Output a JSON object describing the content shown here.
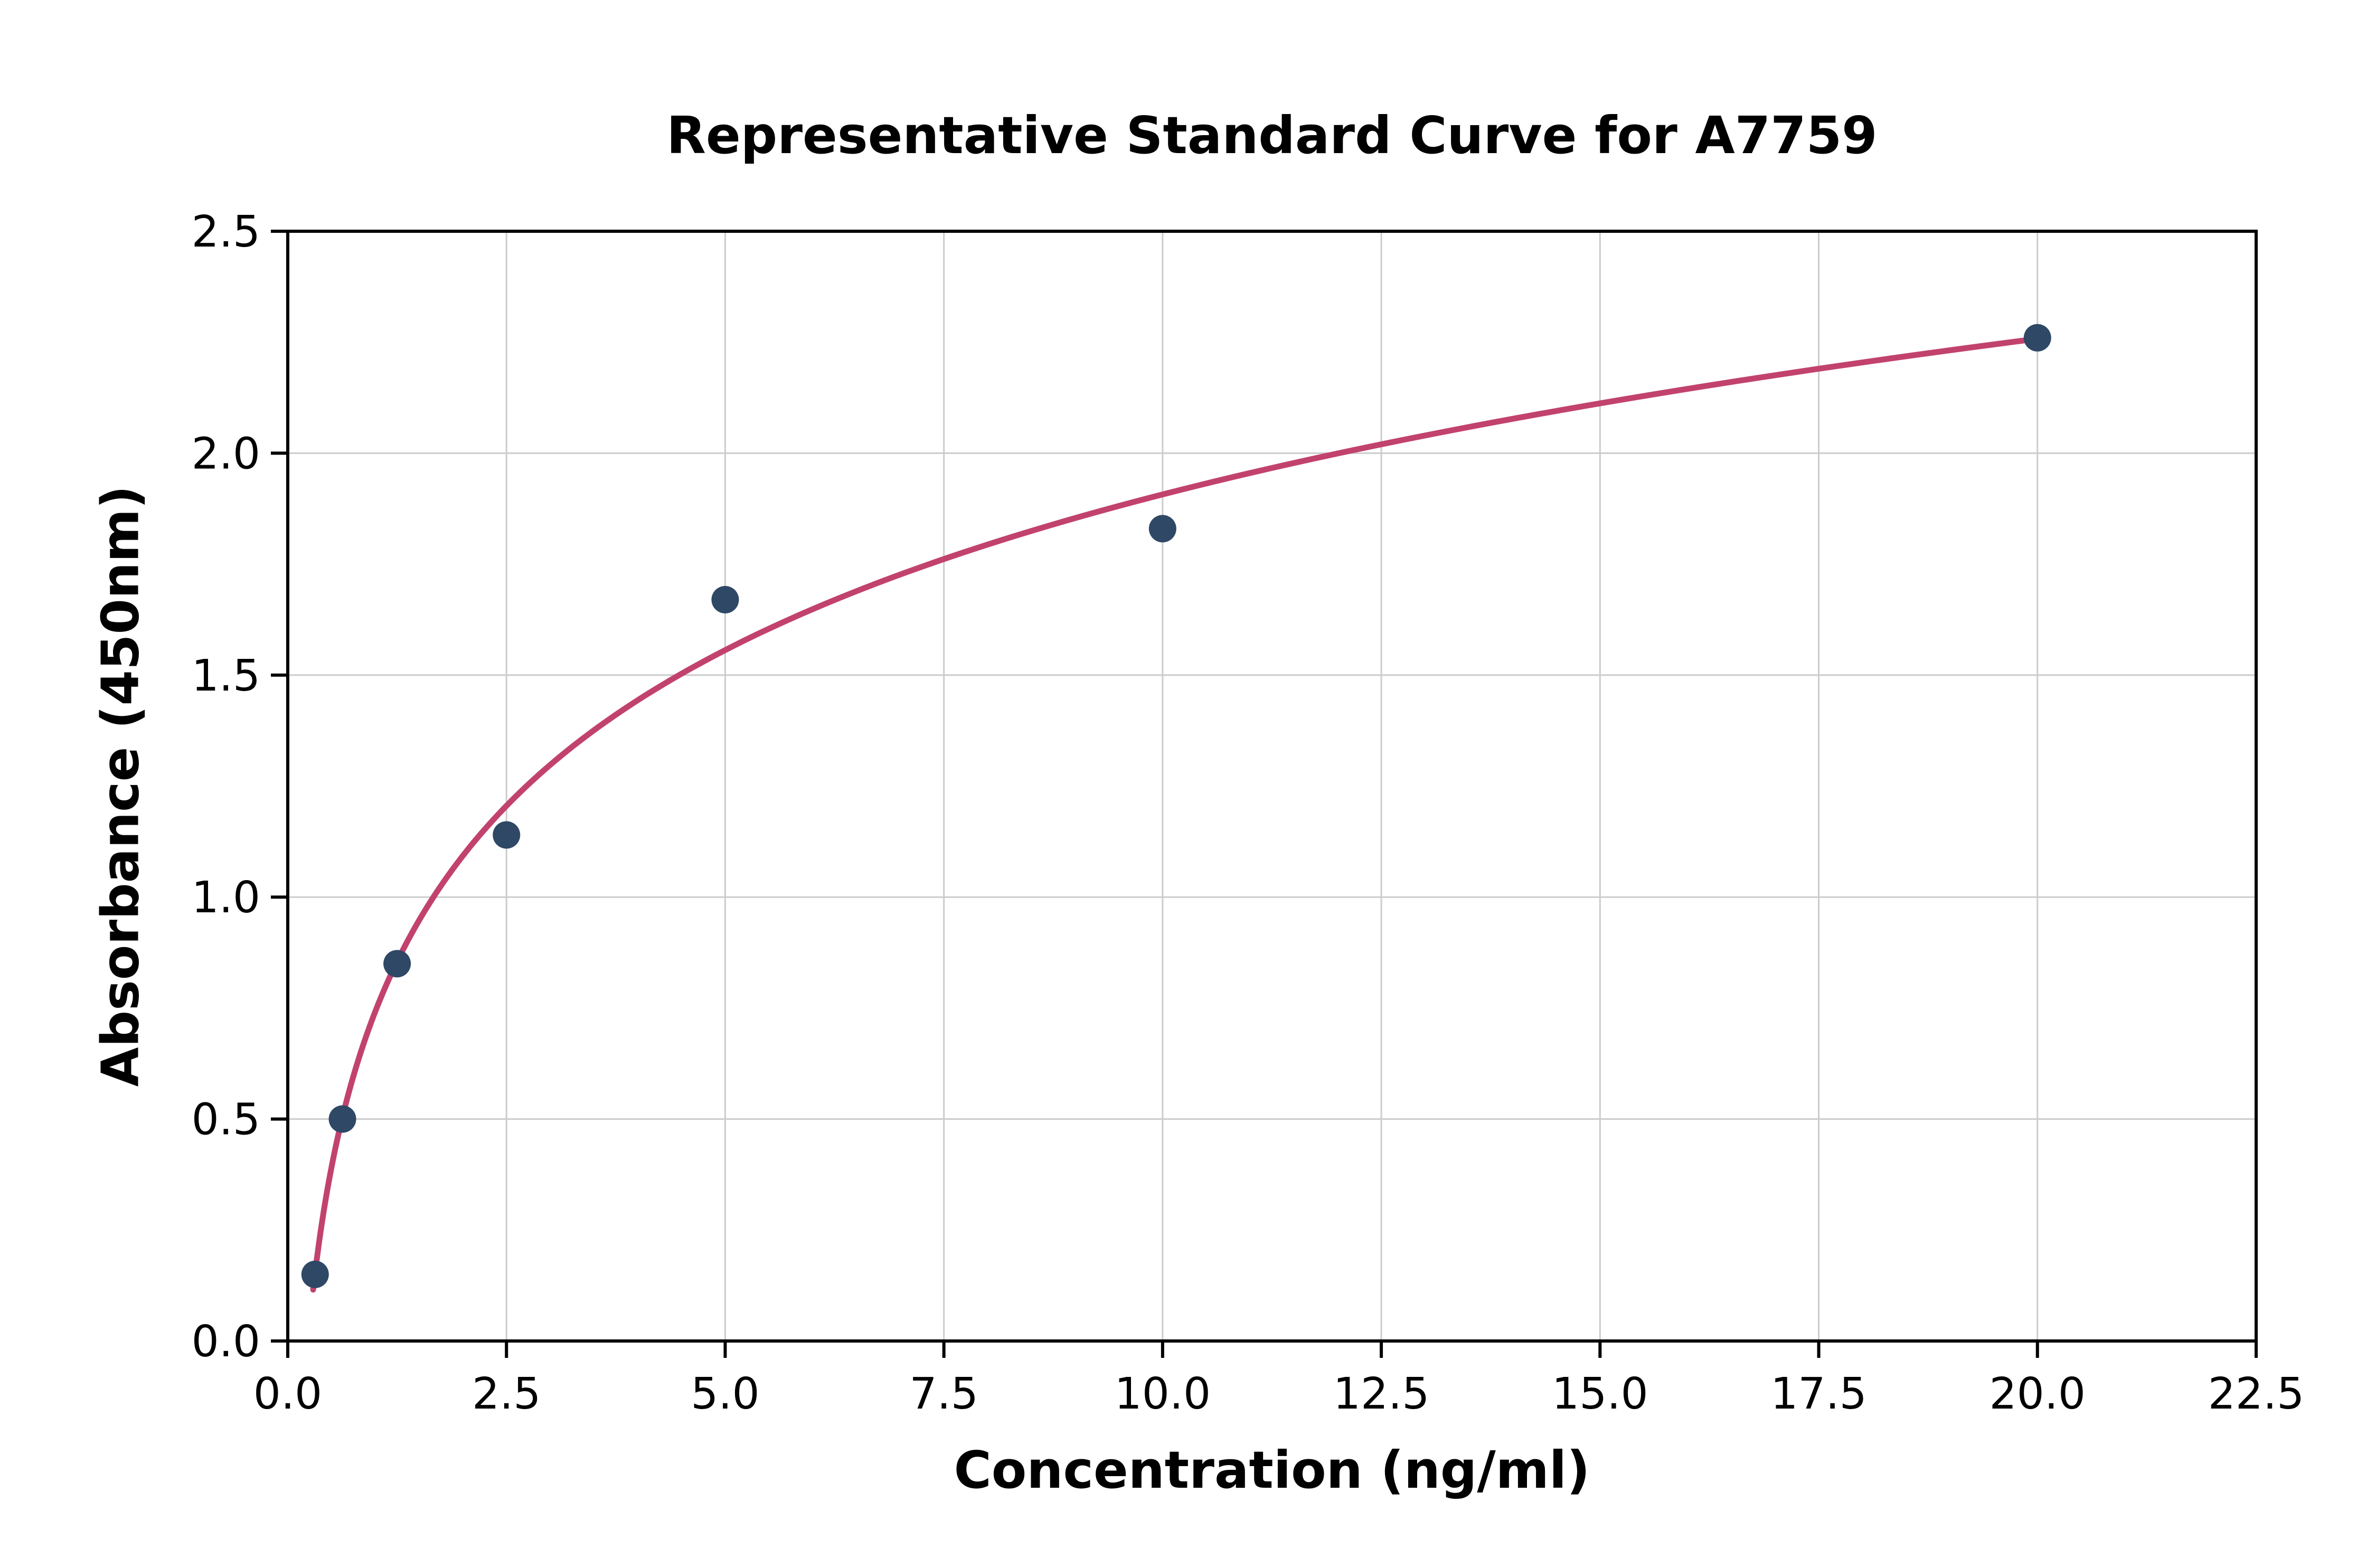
{
  "chart_data": {
    "type": "scatter",
    "title": "Representative Standard Curve for A7759",
    "xlabel": "Concentration (ng/ml)",
    "ylabel": "Absorbance (450nm)",
    "xlim": [
      0,
      22.5
    ],
    "ylim": [
      0,
      2.5
    ],
    "x_ticks": [
      0,
      2.5,
      5,
      7.5,
      10,
      12.5,
      15,
      17.5,
      20,
      22.5
    ],
    "x_tick_labels": [
      "0.0",
      "2.5",
      "5.0",
      "7.5",
      "10.0",
      "12.5",
      "15.0",
      "17.5",
      "20.0",
      "22.5"
    ],
    "y_ticks": [
      0,
      0.5,
      1.0,
      1.5,
      2.0,
      2.5
    ],
    "y_tick_labels": [
      "0.0",
      "0.5",
      "1.0",
      "1.5",
      "2.0",
      "2.5"
    ],
    "grid": true,
    "legend": "none",
    "points": {
      "x": [
        0.3125,
        0.625,
        1.25,
        2.5,
        5.0,
        10.0,
        20.0
      ],
      "y": [
        0.15,
        0.5,
        0.85,
        1.14,
        1.67,
        1.83,
        2.26
      ]
    },
    "fit_curve": {
      "type": "logarithmic",
      "equation": "y = 0.742 + 0.506 * ln(x)",
      "a": 0.742,
      "b": 0.506,
      "x_start": 0.29,
      "x_end": 20.0
    },
    "colors": {
      "point": "#2e4866",
      "curve": "#c2426e",
      "grid": "#cccccc",
      "axis": "#000000",
      "text": "#000000"
    }
  }
}
